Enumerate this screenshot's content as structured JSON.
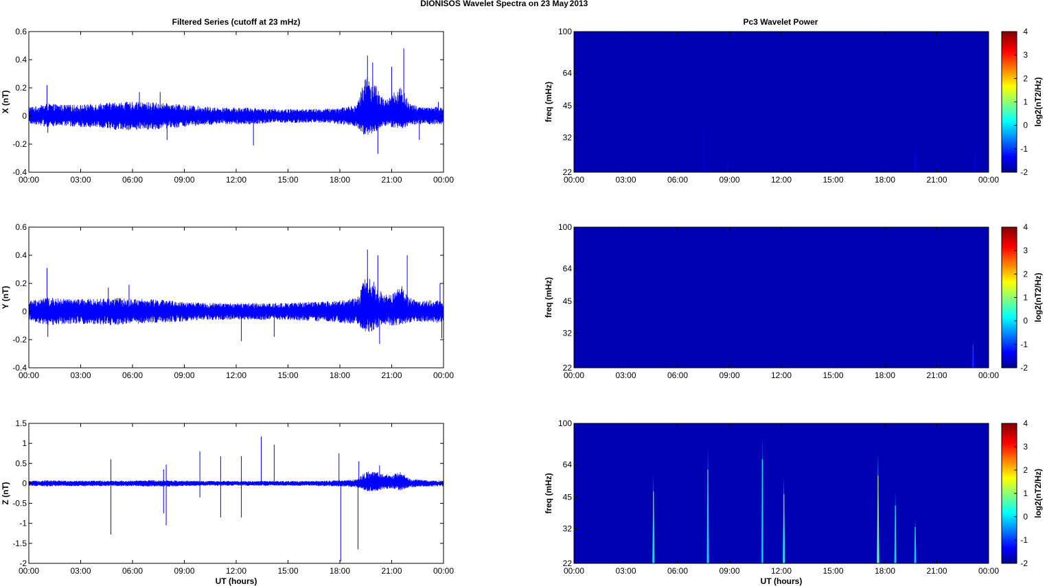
{
  "figure": {
    "title_left": "DIONISOS Wavelet Spectra on 23 May",
    "title_right": "2013",
    "left_column_title": "Filtered Series (cutoff at 23 mHz)",
    "right_column_title": "Pc3 Wavelet Power",
    "x_axis_label": "UT (hours)"
  },
  "chart_data": [
    {
      "type": "line",
      "title": "Filtered Series (cutoff at 23 mHz)",
      "xlabel": "",
      "ylabel": "X (nT)",
      "x_ticks": [
        "00:00",
        "03:00",
        "06:00",
        "09:00",
        "12:00",
        "15:00",
        "18:00",
        "21:00",
        "00:00"
      ],
      "y_ticks": [
        "-0.4",
        "-0.2",
        "0",
        "0.2",
        "0.4",
        "0.6"
      ],
      "xlim_hours": [
        0,
        24
      ],
      "ylim": [
        -0.4,
        0.6
      ],
      "color": "#0000ff",
      "envelope": {
        "x": [
          0,
          0.5,
          1,
          2,
          3,
          4,
          5,
          6,
          7,
          8,
          9,
          10,
          11,
          12,
          13,
          14,
          15,
          16,
          17,
          18,
          19,
          19.5,
          20,
          20.5,
          21,
          21.5,
          22,
          22.5,
          23,
          24
        ],
        "upper": [
          0.07,
          0.07,
          0.09,
          0.08,
          0.08,
          0.09,
          0.1,
          0.1,
          0.1,
          0.09,
          0.08,
          0.07,
          0.06,
          0.06,
          0.06,
          0.05,
          0.05,
          0.05,
          0.05,
          0.06,
          0.08,
          0.3,
          0.25,
          0.12,
          0.15,
          0.22,
          0.1,
          0.07,
          0.06,
          0.07
        ],
        "lower": [
          -0.06,
          -0.06,
          -0.08,
          -0.07,
          -0.08,
          -0.08,
          -0.1,
          -0.1,
          -0.1,
          -0.09,
          -0.08,
          -0.07,
          -0.06,
          -0.06,
          -0.06,
          -0.05,
          -0.05,
          -0.05,
          -0.05,
          -0.06,
          -0.08,
          -0.15,
          -0.12,
          -0.08,
          -0.08,
          -0.1,
          -0.07,
          -0.06,
          -0.06,
          -0.06
        ]
      },
      "spikes": [
        {
          "x": 1.05,
          "y": 0.22
        },
        {
          "x": 1.1,
          "y": -0.12
        },
        {
          "x": 6.4,
          "y": 0.17
        },
        {
          "x": 7.6,
          "y": 0.17
        },
        {
          "x": 8.0,
          "y": -0.17
        },
        {
          "x": 13.0,
          "y": -0.21
        },
        {
          "x": 19.6,
          "y": 0.43
        },
        {
          "x": 19.9,
          "y": 0.38
        },
        {
          "x": 20.2,
          "y": -0.27
        },
        {
          "x": 21.0,
          "y": 0.35
        },
        {
          "x": 21.7,
          "y": 0.48
        },
        {
          "x": 22.6,
          "y": -0.17
        },
        {
          "x": 23.7,
          "y": 0.1
        }
      ]
    },
    {
      "type": "line",
      "xlabel": "",
      "ylabel": "Y (nT)",
      "x_ticks": [
        "00:00",
        "03:00",
        "06:00",
        "09:00",
        "12:00",
        "15:00",
        "18:00",
        "21:00",
        "00:00"
      ],
      "y_ticks": [
        "-0.4",
        "-0.2",
        "0",
        "0.2",
        "0.4",
        "0.6"
      ],
      "xlim_hours": [
        0,
        24
      ],
      "ylim": [
        -0.4,
        0.6
      ],
      "color": "#0000ff",
      "envelope": {
        "x": [
          0,
          0.5,
          1,
          2,
          3,
          4,
          5,
          6,
          7,
          8,
          9,
          10,
          11,
          12,
          13,
          14,
          15,
          16,
          17,
          18,
          19,
          19.5,
          20,
          20.5,
          21,
          21.5,
          22,
          22.5,
          23,
          24
        ],
        "upper": [
          0.08,
          0.09,
          0.1,
          0.09,
          0.09,
          0.09,
          0.1,
          0.09,
          0.09,
          0.08,
          0.07,
          0.06,
          0.06,
          0.06,
          0.06,
          0.06,
          0.06,
          0.07,
          0.07,
          0.08,
          0.1,
          0.25,
          0.22,
          0.12,
          0.12,
          0.2,
          0.1,
          0.08,
          0.08,
          0.08
        ],
        "lower": [
          -0.06,
          -0.08,
          -0.1,
          -0.09,
          -0.09,
          -0.09,
          -0.1,
          -0.09,
          -0.08,
          -0.08,
          -0.07,
          -0.06,
          -0.06,
          -0.06,
          -0.06,
          -0.06,
          -0.06,
          -0.07,
          -0.07,
          -0.08,
          -0.1,
          -0.15,
          -0.14,
          -0.09,
          -0.1,
          -0.1,
          -0.08,
          -0.07,
          -0.08,
          -0.08
        ]
      },
      "spikes": [
        {
          "x": 1.05,
          "y": 0.31
        },
        {
          "x": 1.1,
          "y": -0.18
        },
        {
          "x": 4.6,
          "y": 0.17
        },
        {
          "x": 5.8,
          "y": 0.19
        },
        {
          "x": 12.3,
          "y": -0.21
        },
        {
          "x": 14.2,
          "y": -0.18
        },
        {
          "x": 19.6,
          "y": 0.44
        },
        {
          "x": 20.2,
          "y": 0.4
        },
        {
          "x": 20.3,
          "y": -0.23
        },
        {
          "x": 21.9,
          "y": 0.4
        },
        {
          "x": 23.8,
          "y": 0.2
        },
        {
          "x": 23.9,
          "y": -0.19
        }
      ]
    },
    {
      "type": "line",
      "xlabel": "UT (hours)",
      "ylabel": "Z (nT)",
      "x_ticks": [
        "00:00",
        "03:00",
        "06:00",
        "09:00",
        "12:00",
        "15:00",
        "18:00",
        "21:00",
        "00:00"
      ],
      "y_ticks": [
        "-2",
        "-1.5",
        "-1",
        "-0.5",
        "0",
        "0.5",
        "1",
        "1.5"
      ],
      "xlim_hours": [
        0,
        24
      ],
      "ylim": [
        -2,
        1.5
      ],
      "color": "#0000ff",
      "envelope": {
        "x": [
          0,
          1,
          2,
          3,
          4,
          5,
          6,
          7,
          8,
          9,
          10,
          11,
          12,
          13,
          14,
          15,
          16,
          17,
          18,
          19,
          19.5,
          20,
          20.5,
          21,
          21.5,
          22,
          23,
          24
        ],
        "upper": [
          0.06,
          0.08,
          0.07,
          0.07,
          0.07,
          0.07,
          0.07,
          0.08,
          0.08,
          0.07,
          0.06,
          0.06,
          0.06,
          0.06,
          0.06,
          0.06,
          0.06,
          0.07,
          0.08,
          0.1,
          0.3,
          0.3,
          0.25,
          0.2,
          0.3,
          0.12,
          0.08,
          0.07
        ],
        "lower": [
          -0.06,
          -0.08,
          -0.07,
          -0.07,
          -0.07,
          -0.07,
          -0.07,
          -0.08,
          -0.08,
          -0.07,
          -0.06,
          -0.06,
          -0.06,
          -0.06,
          -0.06,
          -0.06,
          -0.06,
          -0.07,
          -0.08,
          -0.1,
          -0.2,
          -0.2,
          -0.15,
          -0.12,
          -0.18,
          -0.1,
          -0.08,
          -0.07
        ]
      },
      "spikes": [
        {
          "x": 4.75,
          "y": 0.6
        },
        {
          "x": 4.75,
          "y": -1.28
        },
        {
          "x": 7.8,
          "y": 0.35
        },
        {
          "x": 7.8,
          "y": -0.75
        },
        {
          "x": 7.95,
          "y": 0.47
        },
        {
          "x": 7.95,
          "y": -1.05
        },
        {
          "x": 9.9,
          "y": 0.8
        },
        {
          "x": 9.9,
          "y": -0.35
        },
        {
          "x": 11.1,
          "y": 0.68
        },
        {
          "x": 11.1,
          "y": -0.85
        },
        {
          "x": 12.3,
          "y": 0.68
        },
        {
          "x": 12.3,
          "y": -0.85
        },
        {
          "x": 13.45,
          "y": 1.17
        },
        {
          "x": 14.2,
          "y": 0.97
        },
        {
          "x": 17.95,
          "y": 0.75
        },
        {
          "x": 18.05,
          "y": -1.95
        },
        {
          "x": 19.05,
          "y": -1.65
        },
        {
          "x": 19.1,
          "y": 0.55
        },
        {
          "x": 20.3,
          "y": 0.45
        }
      ]
    },
    {
      "type": "heatmap",
      "title": "Pc3 Wavelet Power",
      "xlabel": "",
      "ylabel": "freq (mHz)",
      "x_ticks": [
        "00:00",
        "03:00",
        "06:00",
        "09:00",
        "12:00",
        "15:00",
        "18:00",
        "21:00",
        "00:00"
      ],
      "y_ticks": [
        "22",
        "32",
        "45",
        "64",
        "100"
      ],
      "y_scale": "log",
      "ylim": [
        22,
        100
      ],
      "colormap": "jet",
      "background_value": -1.7,
      "colorbar": {
        "label": "log2(nT2/Hz)",
        "ticks": [
          "-2",
          "-1",
          "0",
          "1",
          "2",
          "3",
          "4"
        ],
        "range": [
          -2,
          4
        ]
      },
      "streaks": [
        {
          "x": 7.5,
          "f_top": 38,
          "value": -1.5
        },
        {
          "x": 8.9,
          "f_top": 26,
          "value": -1.5
        },
        {
          "x": 19.75,
          "f_top": 30,
          "value": -1.3
        },
        {
          "x": 23.2,
          "f_top": 30,
          "value": -1.4
        }
      ]
    },
    {
      "type": "heatmap",
      "xlabel": "",
      "ylabel": "freq (mHz)",
      "x_ticks": [
        "00:00",
        "03:00",
        "06:00",
        "09:00",
        "12:00",
        "15:00",
        "18:00",
        "21:00",
        "00:00"
      ],
      "y_ticks": [
        "22",
        "32",
        "45",
        "64",
        "100"
      ],
      "y_scale": "log",
      "ylim": [
        22,
        100
      ],
      "colormap": "jet",
      "background_value": -1.7,
      "colorbar": {
        "label": "log2(nT2/Hz)",
        "ticks": [
          "-2",
          "-1",
          "0",
          "1",
          "2",
          "3",
          "4"
        ],
        "range": [
          -2,
          4
        ]
      },
      "streaks": [
        {
          "x": 23.1,
          "f_top": 30,
          "value": -0.8
        }
      ]
    },
    {
      "type": "heatmap",
      "xlabel": "UT (hours)",
      "ylabel": "freq (mHz)",
      "x_ticks": [
        "00:00",
        "03:00",
        "06:00",
        "09:00",
        "12:00",
        "15:00",
        "18:00",
        "21:00",
        "00:00"
      ],
      "y_ticks": [
        "22",
        "32",
        "45",
        "64",
        "100"
      ],
      "y_scale": "log",
      "ylim": [
        22,
        100
      ],
      "colormap": "jet",
      "background_value": -1.7,
      "colorbar": {
        "label": "log2(nT2/Hz)",
        "ticks": [
          "-2",
          "-1",
          "0",
          "1",
          "2",
          "3",
          "4"
        ],
        "range": [
          -2,
          4
        ]
      },
      "streaks": [
        {
          "x": 4.6,
          "f_top": 58,
          "value": 0.8
        },
        {
          "x": 7.75,
          "f_top": 78,
          "value": 0.6
        },
        {
          "x": 10.9,
          "f_top": 90,
          "value": 0.2
        },
        {
          "x": 12.15,
          "f_top": 56,
          "value": 1.0
        },
        {
          "x": 17.6,
          "f_top": 72,
          "value": 1.5
        },
        {
          "x": 18.6,
          "f_top": 48,
          "value": 0.5
        },
        {
          "x": 19.75,
          "f_top": 36,
          "value": 0.4
        }
      ]
    }
  ]
}
